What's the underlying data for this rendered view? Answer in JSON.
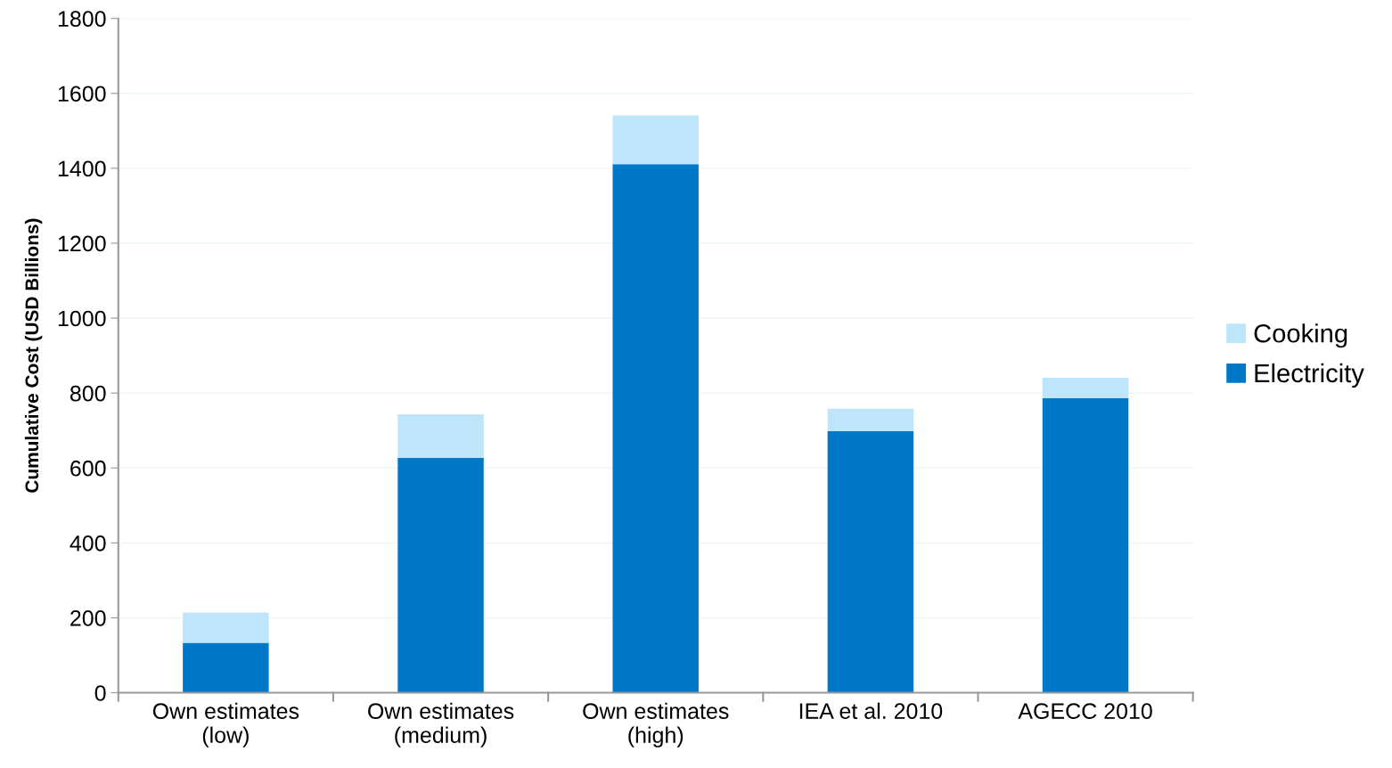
{
  "chart_data": {
    "type": "bar",
    "ylabel": "Cumulative Cost (USD Billions)",
    "categories": [
      "Own estimates\n(low)",
      "Own estimates\n(medium)",
      "Own estimates\n(high)",
      "IEA et al. 2010",
      "AGECC 2010"
    ],
    "series": [
      {
        "name": "Electricity",
        "color": "#0078c8",
        "values": [
          133,
          627,
          1411,
          698,
          786
        ]
      },
      {
        "name": "Cooking",
        "color": "#bfe5fb",
        "values": [
          81,
          116,
          130,
          60,
          55
        ]
      }
    ],
    "stacked": true,
    "ylim": [
      0,
      1800
    ],
    "yticks": [
      0,
      200,
      400,
      600,
      800,
      1000,
      1200,
      1400,
      1600,
      1800
    ],
    "grid": "y",
    "legend": "right"
  }
}
